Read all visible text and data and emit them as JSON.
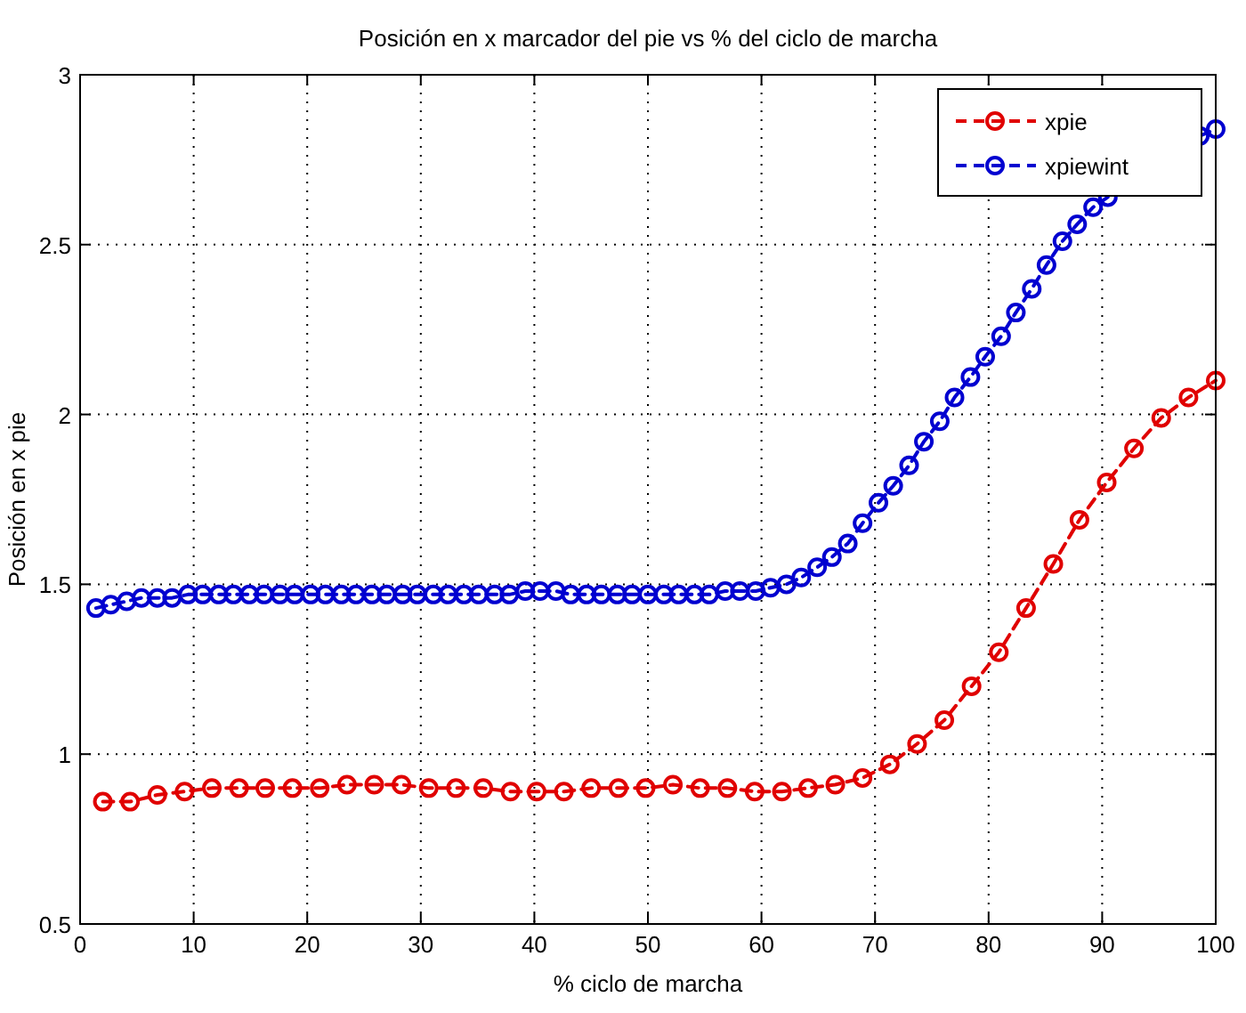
{
  "chart_data": {
    "type": "line",
    "title": "Posición en x marcador del pie vs % del ciclo de marcha",
    "xlabel": "% ciclo de marcha",
    "ylabel": "Posición en x  pie",
    "xlim": [
      0,
      100
    ],
    "xticks": [
      0,
      10,
      20,
      30,
      40,
      50,
      60,
      70,
      80,
      90,
      100
    ],
    "ylim": [
      0.5,
      3
    ],
    "yticks": [
      0.5,
      1,
      1.5,
      2,
      2.5,
      3
    ],
    "grid": true,
    "legend": "top right",
    "marker": "circle",
    "line_style": "dashed",
    "series": [
      {
        "name": "xpie",
        "color": "#e00000",
        "x": [
          2,
          4.4,
          6.8,
          9.2,
          11.6,
          14,
          16.3,
          18.7,
          21.1,
          23.5,
          25.9,
          28.3,
          30.7,
          33.1,
          35.5,
          37.9,
          40.2,
          42.6,
          45,
          47.4,
          49.8,
          52.2,
          54.6,
          57,
          59.4,
          61.8,
          64.1,
          66.5,
          68.9,
          71.3,
          73.7,
          76.1,
          78.5,
          80.9,
          83.3,
          85.7,
          88,
          90.4,
          92.8,
          95.2,
          97.6,
          100
        ],
        "values": [
          0.86,
          0.86,
          0.88,
          0.89,
          0.9,
          0.9,
          0.9,
          0.9,
          0.9,
          0.91,
          0.91,
          0.91,
          0.9,
          0.9,
          0.9,
          0.89,
          0.89,
          0.89,
          0.9,
          0.9,
          0.9,
          0.91,
          0.9,
          0.9,
          0.89,
          0.89,
          0.9,
          0.91,
          0.93,
          0.97,
          1.03,
          1.1,
          1.2,
          1.3,
          1.43,
          1.56,
          1.69,
          1.8,
          1.9,
          1.99,
          2.05,
          2.1
        ]
      },
      {
        "name": "xpiewint",
        "color": "#0000d0",
        "x": [
          1.4,
          2.7,
          4.1,
          5.4,
          6.8,
          8.1,
          9.5,
          10.8,
          12.2,
          13.5,
          14.9,
          16.2,
          17.6,
          18.9,
          20.3,
          21.6,
          23,
          24.3,
          25.7,
          27,
          28.4,
          29.7,
          31.1,
          32.4,
          33.8,
          35.1,
          36.5,
          37.8,
          39.2,
          40.5,
          41.9,
          43.2,
          44.6,
          45.9,
          47.3,
          48.6,
          50,
          51.4,
          52.7,
          54.1,
          55.4,
          56.8,
          58.1,
          59.5,
          60.8,
          62.2,
          63.5,
          64.9,
          66.2,
          67.6,
          68.9,
          70.3,
          71.6,
          73,
          74.3,
          75.7,
          77,
          78.4,
          79.7,
          81.1,
          82.4,
          83.8,
          85.1,
          86.5,
          87.8,
          89.2,
          90.5,
          91.9,
          93.2,
          94.6,
          95.9,
          97.3,
          98.6,
          100
        ],
        "values": [
          1.43,
          1.44,
          1.45,
          1.46,
          1.46,
          1.46,
          1.47,
          1.47,
          1.47,
          1.47,
          1.47,
          1.47,
          1.47,
          1.47,
          1.47,
          1.47,
          1.47,
          1.47,
          1.47,
          1.47,
          1.47,
          1.47,
          1.47,
          1.47,
          1.47,
          1.47,
          1.47,
          1.47,
          1.48,
          1.48,
          1.48,
          1.47,
          1.47,
          1.47,
          1.47,
          1.47,
          1.47,
          1.47,
          1.47,
          1.47,
          1.47,
          1.48,
          1.48,
          1.48,
          1.49,
          1.5,
          1.52,
          1.55,
          1.58,
          1.62,
          1.68,
          1.74,
          1.79,
          1.85,
          1.92,
          1.98,
          2.05,
          2.11,
          2.17,
          2.23,
          2.3,
          2.37,
          2.44,
          2.51,
          2.56,
          2.61,
          2.64,
          null,
          null,
          null,
          null,
          null,
          2.82,
          2.84
        ]
      }
    ]
  }
}
